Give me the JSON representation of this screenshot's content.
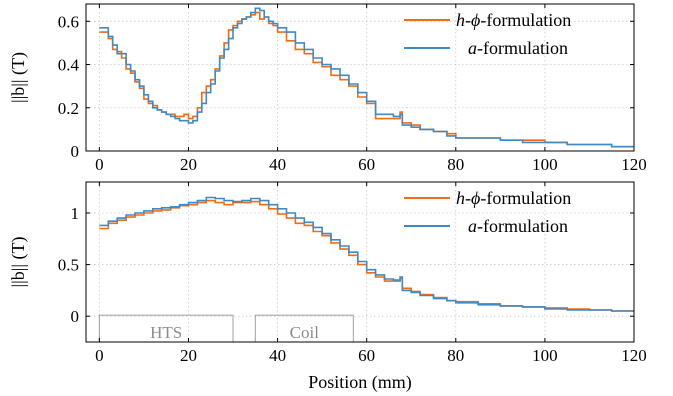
{
  "colors": {
    "h_phi": "#F36B13",
    "a_form": "#3F8AC4",
    "grid": "#c8c8c8",
    "region": "#a0a0a0"
  },
  "chart_data": [
    {
      "type": "line",
      "ylabel": "||b|| (T)",
      "xlim": [
        -3,
        120
      ],
      "ylim": [
        0,
        0.68
      ],
      "xticks": [
        "0",
        "20",
        "40",
        "60",
        "80",
        "100",
        "120"
      ],
      "yticks": [
        "0",
        "0.2",
        "0.4",
        "0.6"
      ],
      "ytick_values": [
        0,
        0.2,
        0.4,
        0.6
      ],
      "grid": true,
      "legend_position": "top-right",
      "series": [
        {
          "name": "h-ϕ-formulation",
          "name_parts": [
            "h",
            "-",
            "ϕ",
            "-formulation"
          ],
          "x": [
            0,
            1,
            2,
            3,
            4,
            5,
            6,
            7,
            8,
            9,
            10,
            11,
            12,
            13,
            14,
            15,
            16,
            17,
            18,
            19,
            20,
            21,
            22,
            23,
            24,
            25,
            26,
            27,
            28,
            29,
            30,
            31,
            32,
            33,
            34,
            35,
            36,
            37,
            38,
            39,
            40,
            42,
            44,
            46,
            48,
            50,
            52,
            54,
            56,
            58,
            60,
            62,
            64,
            66,
            67.5,
            68,
            70,
            72,
            75,
            78,
            80,
            85,
            90,
            95,
            100,
            105,
            110,
            115,
            120
          ],
          "y": [
            0.55,
            0.55,
            0.52,
            0.47,
            0.46,
            0.43,
            0.38,
            0.36,
            0.32,
            0.29,
            0.24,
            0.22,
            0.21,
            0.19,
            0.18,
            0.17,
            0.17,
            0.16,
            0.16,
            0.17,
            0.15,
            0.16,
            0.2,
            0.27,
            0.3,
            0.33,
            0.38,
            0.44,
            0.5,
            0.56,
            0.58,
            0.6,
            0.61,
            0.62,
            0.63,
            0.64,
            0.61,
            0.62,
            0.59,
            0.58,
            0.55,
            0.51,
            0.47,
            0.45,
            0.41,
            0.39,
            0.35,
            0.33,
            0.3,
            0.25,
            0.22,
            0.15,
            0.15,
            0.15,
            0.18,
            0.13,
            0.12,
            0.1,
            0.09,
            0.08,
            0.06,
            0.06,
            0.05,
            0.05,
            0.04,
            0.03,
            0.03,
            0.02,
            0.02
          ]
        },
        {
          "name": "a-formulation",
          "name_parts": [
            "a",
            "-formulation"
          ],
          "x": [
            0,
            1,
            2,
            3,
            4,
            5,
            6,
            7,
            8,
            9,
            10,
            11,
            12,
            13,
            14,
            15,
            16,
            17,
            18,
            19,
            20,
            21,
            22,
            23,
            24,
            25,
            26,
            27,
            28,
            29,
            30,
            31,
            32,
            33,
            34,
            35,
            36,
            37,
            38,
            39,
            40,
            42,
            44,
            46,
            48,
            50,
            52,
            54,
            56,
            58,
            60,
            62,
            64,
            66,
            67.5,
            68,
            70,
            72,
            75,
            78,
            80,
            85,
            90,
            95,
            100,
            105,
            110,
            115,
            120
          ],
          "y": [
            0.57,
            0.57,
            0.53,
            0.49,
            0.45,
            0.45,
            0.4,
            0.37,
            0.33,
            0.3,
            0.26,
            0.23,
            0.2,
            0.19,
            0.18,
            0.17,
            0.16,
            0.15,
            0.14,
            0.14,
            0.13,
            0.14,
            0.18,
            0.22,
            0.27,
            0.31,
            0.37,
            0.43,
            0.47,
            0.52,
            0.57,
            0.59,
            0.61,
            0.62,
            0.64,
            0.66,
            0.65,
            0.62,
            0.6,
            0.59,
            0.57,
            0.55,
            0.5,
            0.47,
            0.43,
            0.4,
            0.38,
            0.35,
            0.31,
            0.27,
            0.23,
            0.17,
            0.17,
            0.16,
            0.17,
            0.12,
            0.11,
            0.1,
            0.09,
            0.07,
            0.06,
            0.06,
            0.05,
            0.04,
            0.04,
            0.03,
            0.03,
            0.02,
            0.02
          ]
        }
      ]
    },
    {
      "type": "line",
      "xlabel": "Position (mm)",
      "ylabel": "||b|| (T)",
      "xlim": [
        -3,
        120
      ],
      "ylim": [
        -0.25,
        1.3
      ],
      "xticks": [
        "0",
        "20",
        "40",
        "60",
        "80",
        "100",
        "120"
      ],
      "yticks": [
        "0",
        "0.5",
        "1"
      ],
      "ytick_values": [
        0,
        0.5,
        1
      ],
      "grid": true,
      "legend_position": "top-right",
      "annotations": [
        {
          "text": "HTS",
          "x_range": [
            0,
            30
          ]
        },
        {
          "text": "Coil",
          "x_range": [
            35,
            57
          ]
        }
      ],
      "series": [
        {
          "name": "h-ϕ-formulation",
          "name_parts": [
            "h",
            "-",
            "ϕ",
            "-formulation"
          ],
          "x": [
            0,
            2,
            4,
            6,
            8,
            10,
            12,
            14,
            16,
            18,
            20,
            22,
            24,
            26,
            28,
            30,
            32,
            34,
            36,
            38,
            40,
            42,
            44,
            46,
            48,
            50,
            52,
            54,
            56,
            58,
            60,
            62,
            64,
            66,
            67.5,
            68,
            70,
            72,
            75,
            78,
            80,
            85,
            90,
            95,
            100,
            105,
            110,
            115,
            120
          ],
          "y": [
            0.85,
            0.9,
            0.93,
            0.96,
            0.98,
            1.0,
            1.02,
            1.03,
            1.05,
            1.07,
            1.08,
            1.1,
            1.12,
            1.1,
            1.08,
            1.1,
            1.1,
            1.11,
            1.08,
            1.04,
            0.99,
            0.95,
            0.9,
            0.88,
            0.82,
            0.78,
            0.71,
            0.65,
            0.59,
            0.5,
            0.42,
            0.38,
            0.34,
            0.34,
            0.37,
            0.27,
            0.24,
            0.21,
            0.18,
            0.15,
            0.14,
            0.12,
            0.1,
            0.09,
            0.08,
            0.07,
            0.06,
            0.05,
            0.05
          ]
        },
        {
          "name": "a-formulation",
          "name_parts": [
            "a",
            "-formulation"
          ],
          "x": [
            0,
            2,
            4,
            6,
            8,
            10,
            12,
            14,
            16,
            18,
            20,
            22,
            24,
            26,
            28,
            30,
            32,
            34,
            36,
            38,
            40,
            42,
            44,
            46,
            48,
            50,
            52,
            54,
            56,
            58,
            60,
            62,
            64,
            66,
            67.5,
            68,
            70,
            72,
            75,
            78,
            80,
            85,
            90,
            95,
            100,
            105,
            110,
            115,
            120
          ],
          "y": [
            0.88,
            0.92,
            0.95,
            0.98,
            1.0,
            1.02,
            1.04,
            1.05,
            1.06,
            1.08,
            1.1,
            1.12,
            1.15,
            1.14,
            1.12,
            1.11,
            1.12,
            1.14,
            1.12,
            1.08,
            1.04,
            1.0,
            0.95,
            0.91,
            0.86,
            0.8,
            0.74,
            0.68,
            0.62,
            0.53,
            0.45,
            0.4,
            0.36,
            0.35,
            0.38,
            0.25,
            0.23,
            0.2,
            0.17,
            0.15,
            0.13,
            0.11,
            0.1,
            0.09,
            0.07,
            0.06,
            0.06,
            0.05,
            0.05
          ]
        }
      ]
    }
  ]
}
